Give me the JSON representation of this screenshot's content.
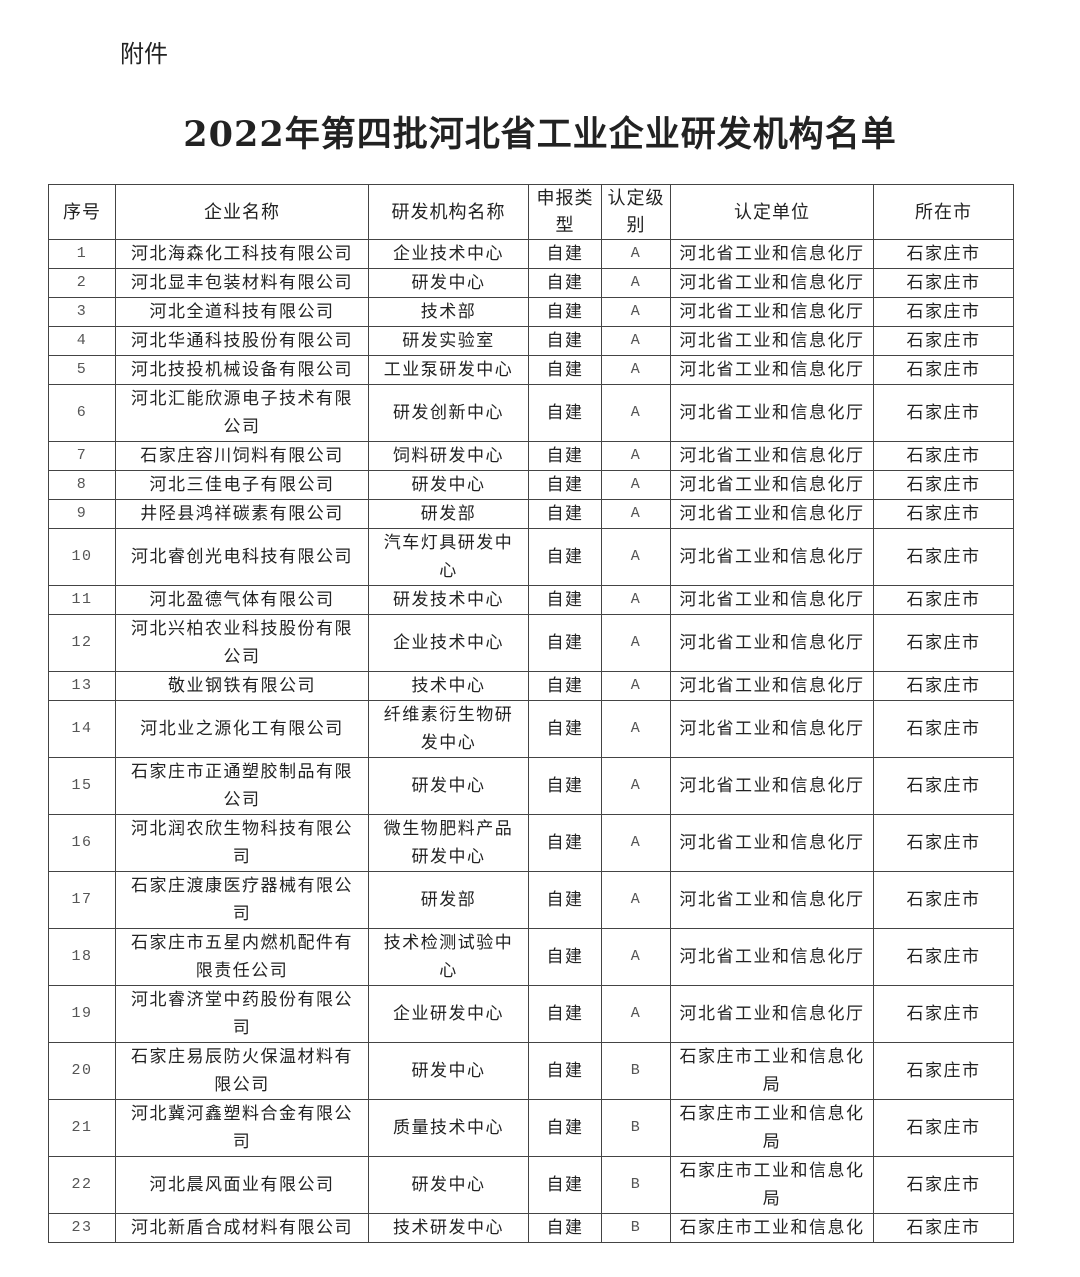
{
  "attachment_label": "附件",
  "title": "2022年第四批河北省工业企业研发机构名单",
  "table": {
    "headers": [
      "序号",
      "企业名称",
      "研发机构名称",
      "申报类型",
      "认定级别",
      "认定单位",
      "所在市"
    ],
    "rows": [
      [
        "1",
        "河北海森化工科技有限公司",
        "企业技术中心",
        "自建",
        "A",
        "河北省工业和信息化厅",
        "石家庄市"
      ],
      [
        "2",
        "河北显丰包装材料有限公司",
        "研发中心",
        "自建",
        "A",
        "河北省工业和信息化厅",
        "石家庄市"
      ],
      [
        "3",
        "河北全道科技有限公司",
        "技术部",
        "自建",
        "A",
        "河北省工业和信息化厅",
        "石家庄市"
      ],
      [
        "4",
        "河北华通科技股份有限公司",
        "研发实验室",
        "自建",
        "A",
        "河北省工业和信息化厅",
        "石家庄市"
      ],
      [
        "5",
        "河北技投机械设备有限公司",
        "工业泵研发中心",
        "自建",
        "A",
        "河北省工业和信息化厅",
        "石家庄市"
      ],
      [
        "6",
        "河北汇能欣源电子技术有限公司",
        "研发创新中心",
        "自建",
        "A",
        "河北省工业和信息化厅",
        "石家庄市"
      ],
      [
        "7",
        "石家庄容川饲料有限公司",
        "饲料研发中心",
        "自建",
        "A",
        "河北省工业和信息化厅",
        "石家庄市"
      ],
      [
        "8",
        "河北三佳电子有限公司",
        "研发中心",
        "自建",
        "A",
        "河北省工业和信息化厅",
        "石家庄市"
      ],
      [
        "9",
        "井陉县鸿祥碳素有限公司",
        "研发部",
        "自建",
        "A",
        "河北省工业和信息化厅",
        "石家庄市"
      ],
      [
        "10",
        "河北睿创光电科技有限公司",
        "汽车灯具研发中心",
        "自建",
        "A",
        "河北省工业和信息化厅",
        "石家庄市"
      ],
      [
        "11",
        "河北盈德气体有限公司",
        "研发技术中心",
        "自建",
        "A",
        "河北省工业和信息化厅",
        "石家庄市"
      ],
      [
        "12",
        "河北兴柏农业科技股份有限公司",
        "企业技术中心",
        "自建",
        "A",
        "河北省工业和信息化厅",
        "石家庄市"
      ],
      [
        "13",
        "敬业钢铁有限公司",
        "技术中心",
        "自建",
        "A",
        "河北省工业和信息化厅",
        "石家庄市"
      ],
      [
        "14",
        "河北业之源化工有限公司",
        "纤维素衍生物研发中心",
        "自建",
        "A",
        "河北省工业和信息化厅",
        "石家庄市"
      ],
      [
        "15",
        "石家庄市正通塑胶制品有限公司",
        "研发中心",
        "自建",
        "A",
        "河北省工业和信息化厅",
        "石家庄市"
      ],
      [
        "16",
        "河北润农欣生物科技有限公司",
        "微生物肥料产品研发中心",
        "自建",
        "A",
        "河北省工业和信息化厅",
        "石家庄市"
      ],
      [
        "17",
        "石家庄渡康医疗器械有限公司",
        "研发部",
        "自建",
        "A",
        "河北省工业和信息化厅",
        "石家庄市"
      ],
      [
        "18",
        "石家庄市五星内燃机配件有限责任公司",
        "技术检测试验中心",
        "自建",
        "A",
        "河北省工业和信息化厅",
        "石家庄市"
      ],
      [
        "19",
        "河北睿济堂中药股份有限公司",
        "企业研发中心",
        "自建",
        "A",
        "河北省工业和信息化厅",
        "石家庄市"
      ],
      [
        "20",
        "石家庄易辰防火保温材料有限公司",
        "研发中心",
        "自建",
        "B",
        "石家庄市工业和信息化局",
        "石家庄市"
      ],
      [
        "21",
        "河北冀河鑫塑料合金有限公司",
        "质量技术中心",
        "自建",
        "B",
        "石家庄市工业和信息化局",
        "石家庄市"
      ],
      [
        "22",
        "河北晨风面业有限公司",
        "研发中心",
        "自建",
        "B",
        "石家庄市工业和信息化局",
        "石家庄市"
      ],
      [
        "23",
        "河北新盾合成材料有限公司",
        "技术研发中心",
        "自建",
        "B",
        "石家庄市工业和信息化",
        "石家庄市"
      ]
    ]
  }
}
